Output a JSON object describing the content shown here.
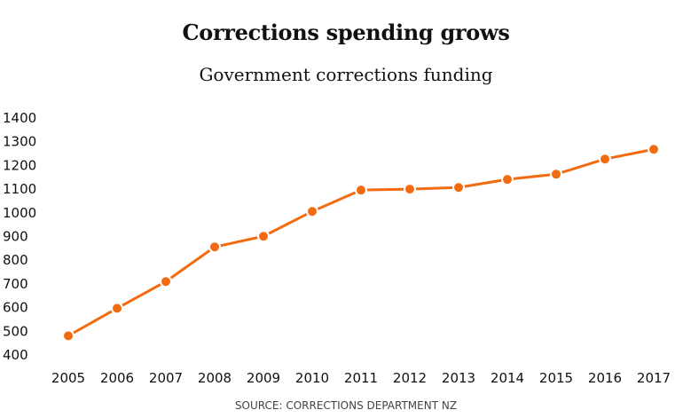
{
  "header": {
    "title": "Corrections spending grows",
    "subtitle": "Government corrections funding"
  },
  "footer": {
    "source": "SOURCE: CORRECTIONS DEPARTMENT NZ"
  },
  "colors": {
    "series": "#f26b10",
    "text": "#111111"
  },
  "chart_data": {
    "type": "line",
    "title": "Corrections spending grows",
    "subtitle": "Government corrections funding",
    "xlabel": "",
    "ylabel": "",
    "categories": [
      "2005",
      "2006",
      "2007",
      "2008",
      "2009",
      "2010",
      "2011",
      "2012",
      "2013",
      "2014",
      "2015",
      "2016",
      "2017"
    ],
    "series": [
      {
        "name": "Government corrections funding",
        "values": [
          481,
          597,
          710,
          856,
          901,
          1006,
          1096,
          1100,
          1107,
          1141,
          1163,
          1227,
          1268
        ]
      }
    ],
    "y_ticks": [
      400,
      500,
      600,
      700,
      800,
      900,
      1000,
      1100,
      1200,
      1300,
      1400
    ],
    "ylim": [
      400,
      1400
    ],
    "grid": false,
    "legend": "none",
    "markers": true,
    "source": "SOURCE: CORRECTIONS DEPARTMENT NZ"
  }
}
